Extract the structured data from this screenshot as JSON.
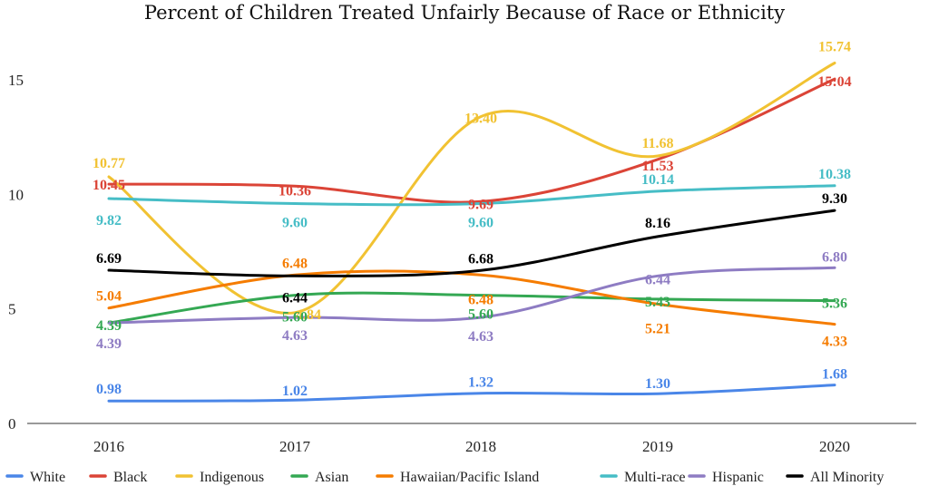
{
  "chart_data": {
    "type": "line",
    "title": "Percent of Children Treated Unfairly Because of Race or Ethnicity",
    "x": [
      "2016",
      "2017",
      "2018",
      "2019",
      "2020"
    ],
    "yticks": [
      "0",
      "5",
      "10",
      "15"
    ],
    "ylim": [
      0,
      17.5
    ],
    "grid": false,
    "legend_position": "bottom",
    "series": [
      {
        "name": "White",
        "color": "#4A86E8",
        "values": [
          0.98,
          1.02,
          1.32,
          1.3,
          1.68
        ],
        "labels": [
          "0.98",
          "1.02",
          "1.32",
          "1.30",
          "1.68"
        ]
      },
      {
        "name": "Black",
        "color": "#DB4437",
        "values": [
          10.45,
          10.36,
          9.69,
          11.53,
          15.04
        ],
        "labels": [
          "10.45",
          "10.36",
          "9.69",
          "11.53",
          "15:04"
        ]
      },
      {
        "name": "Indigenous",
        "color": "#F1C232",
        "values": [
          10.77,
          4.84,
          13.4,
          11.68,
          15.74
        ],
        "labels": [
          "10.77",
          "4.84",
          "13.40",
          "11.68",
          "15.74"
        ]
      },
      {
        "name": "Asian",
        "color": "#34A853",
        "values": [
          4.39,
          5.6,
          5.6,
          5.43,
          5.36
        ],
        "labels": [
          "4.39",
          "5.60",
          "5.60",
          "5.43",
          "5.36"
        ]
      },
      {
        "name": "Hawaiian/Pacific Island",
        "color": "#F57C00",
        "values": [
          5.04,
          6.48,
          6.48,
          5.21,
          4.33
        ],
        "labels": [
          "5.04",
          "6.48",
          "6.48",
          "5.21",
          "4.33"
        ]
      },
      {
        "name": "Multi-race",
        "color": "#46BDC6",
        "values": [
          9.82,
          9.6,
          9.6,
          10.14,
          10.38
        ],
        "labels": [
          "9.82",
          "9.60",
          "9.60",
          "10.14",
          "10.38"
        ]
      },
      {
        "name": "Hispanic",
        "color": "#8E7CC3",
        "values": [
          4.39,
          4.63,
          4.63,
          6.44,
          6.8
        ],
        "labels": [
          "4.39",
          "4.63",
          "4.63",
          "6.44",
          "6.80"
        ]
      },
      {
        "name": "All Minority",
        "color": "#000000",
        "values": [
          6.69,
          6.44,
          6.68,
          8.16,
          9.3
        ],
        "labels": [
          "6.69",
          "6.44",
          "6.68",
          "8.16",
          "9.30"
        ]
      }
    ]
  }
}
